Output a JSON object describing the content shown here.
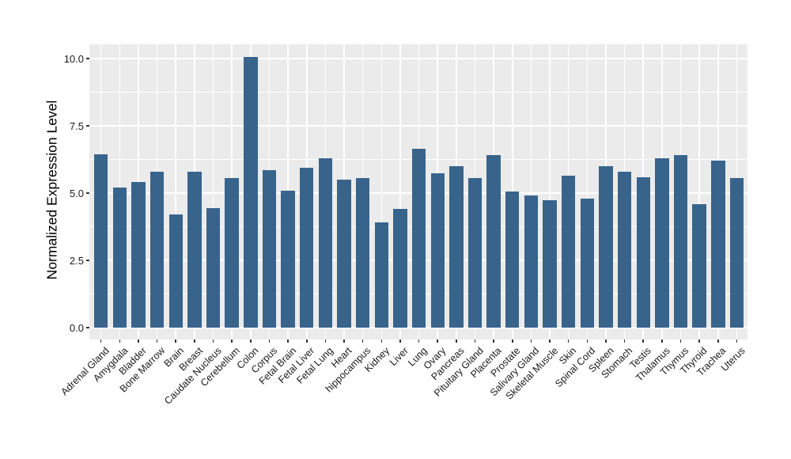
{
  "figure": {
    "background": "#ffffff"
  },
  "chart_data": {
    "type": "bar",
    "title": "",
    "xlabel": "",
    "ylabel": "Normalized Expression Level",
    "categories": [
      "Adrenal Gland",
      "Amygdala",
      "Bladder",
      "Bone Marrow",
      "Brain",
      "Breast",
      "Caudate Nucleus",
      "Cerebellum",
      "Colon",
      "Corpus",
      "Fetal Brain",
      "Fetal Liver",
      "Fetal Lung",
      "Heart",
      "hippocampus",
      "Kidney",
      "Liver",
      "Lung",
      "Ovary",
      "Pancreas",
      "Pituitary Gland",
      "Placenta",
      "Prostate",
      "Salivary Gland",
      "Skeletal Muscle",
      "Skin",
      "Spinal Cord",
      "Spleen",
      "Stomach",
      "Testis",
      "Thalamus",
      "Thymus",
      "Thyroid",
      "Trachea",
      "Uterus"
    ],
    "values": [
      6.45,
      5.2,
      5.4,
      5.8,
      4.2,
      5.8,
      4.45,
      5.55,
      10.05,
      5.85,
      5.1,
      5.95,
      6.3,
      5.5,
      5.55,
      3.9,
      4.4,
      6.65,
      5.75,
      6.0,
      5.55,
      6.4,
      5.05,
      4.9,
      4.75,
      5.65,
      4.8,
      6.0,
      5.8,
      5.6,
      6.3,
      6.4,
      4.6,
      6.2,
      5.55
    ],
    "yticks": [
      0.0,
      2.5,
      5.0,
      7.5,
      10.0
    ],
    "ytick_labels": [
      "0.0",
      "2.5",
      "5.0",
      "7.5",
      "10.0"
    ],
    "minor_yticks": [
      1.25,
      3.75,
      6.25,
      8.75
    ],
    "ylim": [
      -0.45,
      10.55
    ],
    "grid": true,
    "legend": "none",
    "bar_color": "#38648C",
    "panel_bg": "#EBEBEB",
    "gridline_color": "#FFFFFF",
    "tick_color": "#333333"
  }
}
